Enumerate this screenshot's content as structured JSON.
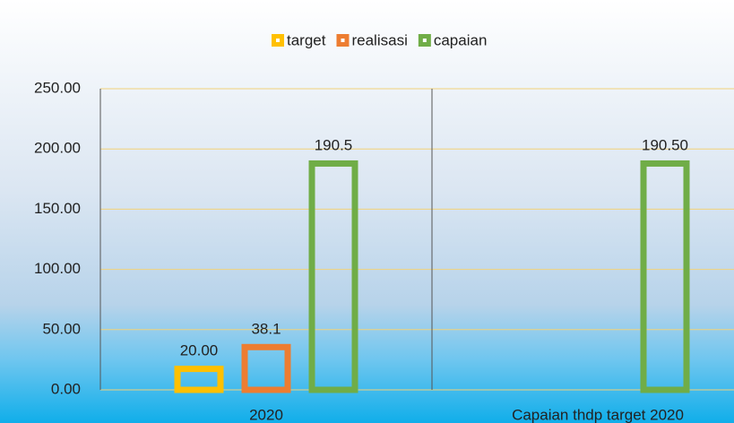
{
  "chart_data": {
    "type": "bar",
    "categories": [
      "2020",
      "Capaian thdp target 2020"
    ],
    "series": [
      {
        "name": "target",
        "color": "#ffc000",
        "values": [
          20,
          null
        ],
        "value_labels": [
          "20.00",
          null
        ]
      },
      {
        "name": "realisasi",
        "color": "#ed7d31",
        "values": [
          38.1,
          null
        ],
        "value_labels": [
          "38.1",
          null
        ]
      },
      {
        "name": "capaian",
        "color": "#70ad47",
        "values": [
          190.5,
          190.5
        ],
        "value_labels": [
          "190.5",
          "190.50"
        ]
      }
    ],
    "ylim": [
      0,
      250
    ],
    "yticks": [
      {
        "value": 0,
        "label": "0.00"
      },
      {
        "value": 50,
        "label": "50.00"
      },
      {
        "value": 100,
        "label": "100.00"
      },
      {
        "value": 150,
        "label": "150.00"
      },
      {
        "value": 200,
        "label": "200.00"
      },
      {
        "value": 250,
        "label": "250.00"
      }
    ],
    "grid": true,
    "legend": "top"
  }
}
